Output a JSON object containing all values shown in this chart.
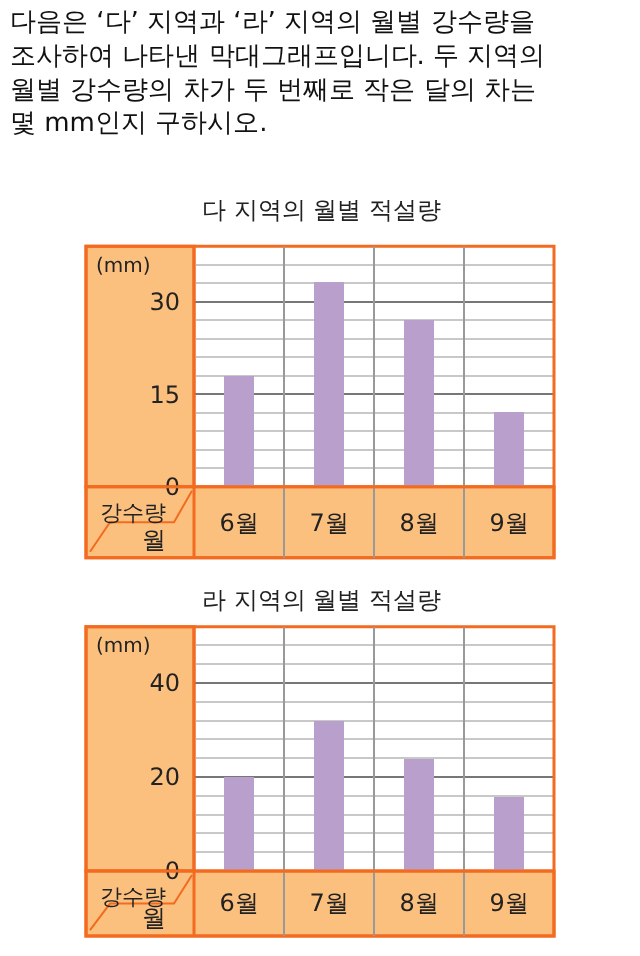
{
  "chart_data": [
    {
      "type": "bar",
      "title": "다 지역의 월별 적설량",
      "xlabel": "월",
      "ylabel": "(mm)",
      "annotations": [
        "강수량",
        "다음은 ‘다’ 지역과 ‘라’ 지역의 월별 강수량을 조사하여 나타낸 막대그래프입니다. 두 지역의 월별 강수량의 차가 두 번째로 작은 달의 차는 몇 mm인지 구하시오."
      ],
      "categories": [
        "6월",
        "7월",
        "8월",
        "9월"
      ],
      "values": [
        18,
        33,
        27,
        12
      ],
      "color": "#b9a0cc",
      "ylim": [
        0,
        39
      ],
      "yticks": [
        0,
        {
          "value": 3,
          "label": null
        },
        {
          "value": 6,
          "label": null
        },
        {
          "value": 9,
          "label": null
        },
        {
          "value": 12,
          "label": null
        },
        15,
        {
          "value": 18,
          "label": null
        },
        {
          "value": 21,
          "label": null
        },
        {
          "value": 24,
          "label": null
        },
        {
          "value": 27,
          "label": null
        },
        30,
        {
          "value": 33,
          "label": null
        },
        {
          "value": 36,
          "label": null
        }
      ],
      "grid": true
    },
    {
      "type": "bar",
      "title": "라 지역의 월별 적설량",
      "xlabel": "월",
      "ylabel": "(mm)",
      "annotations": [
        "강수량"
      ],
      "categories": [
        "6월",
        "7월",
        "8월",
        "9월"
      ],
      "values": [
        20,
        32,
        24,
        16
      ],
      "color": "#b9a0cc",
      "ylim": [
        0,
        52
      ],
      "yticks": [
        0,
        {
          "value": 4,
          "label": null
        },
        {
          "value": 8,
          "label": null
        },
        {
          "value": 12,
          "label": null
        },
        {
          "value": 16,
          "label": null
        },
        20,
        {
          "value": 24,
          "label": null
        },
        {
          "value": 28,
          "label": null
        },
        {
          "value": 32,
          "label": null
        },
        {
          "value": 36,
          "label": null
        },
        40,
        {
          "value": 44,
          "label": null
        },
        {
          "value": 48,
          "label": null
        }
      ],
      "grid": true
    }
  ]
}
